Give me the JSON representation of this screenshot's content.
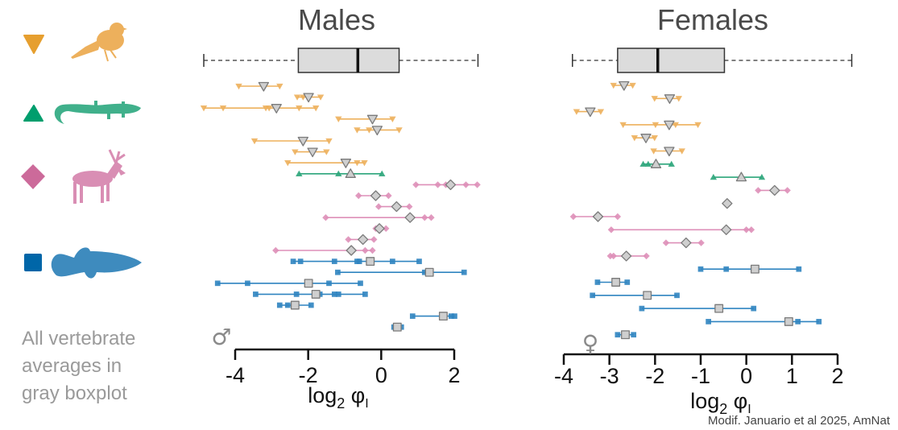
{
  "legend": {
    "groups": [
      {
        "id": "birds",
        "marker": "triangle-down",
        "marker_color": "#E69F2F",
        "line_color": "#EDB05C",
        "icon": "bird-silhouette-icon"
      },
      {
        "id": "reptiles",
        "marker": "triangle-up",
        "marker_color": "#009E6D",
        "line_color": "#2BA57A",
        "icon": "lizard-silhouette-icon"
      },
      {
        "id": "mammals",
        "marker": "diamond",
        "marker_color": "#CC6A9A",
        "line_color": "#DE8FB8",
        "icon": "deer-silhouette-icon"
      },
      {
        "id": "fish",
        "marker": "square",
        "marker_color": "#0066A8",
        "line_color": "#2F84C0",
        "icon": "fish-silhouette-icon"
      }
    ],
    "note_lines": [
      "All vertebrate",
      "averages in",
      "gray boxplot"
    ]
  },
  "credit": "Modif. Januario et al 2025, AmNat",
  "chart_data": [
    {
      "type": "dot-range",
      "title": "Males",
      "sex_symbol": "♂",
      "xlabel_main": "log",
      "xlabel_sub": "2",
      "xlabel_tail": " φ",
      "xlabel_tail_sub": "I",
      "xlim": [
        -4,
        2
      ],
      "xticks": [
        "-4",
        "-2",
        "0",
        "2"
      ],
      "xtick_values": [
        -4,
        -2,
        0,
        2
      ],
      "boxplot": {
        "min": -4.86,
        "q1": -2.27,
        "median": -0.64,
        "q3": 0.49,
        "max": 2.65
      },
      "rows": [
        {
          "group": "birds",
          "values": [
            -3.9,
            -2.78
          ],
          "mean": -3.22
        },
        {
          "group": "birds",
          "values": [
            -2.3,
            -2.14,
            -1.66
          ],
          "mean": -1.99
        },
        {
          "group": "birds",
          "values": [
            -4.86,
            -4.33,
            -3.16,
            -3.07,
            -2.25,
            -1.79
          ],
          "mean": -2.87
        },
        {
          "group": "birds",
          "values": [
            -1.17,
            0.31
          ],
          "mean": -0.24
        },
        {
          "group": "birds",
          "values": [
            -0.66,
            -0.33,
            0.49
          ],
          "mean": -0.11
        },
        {
          "group": "birds",
          "values": [
            -3.47,
            -1.43
          ],
          "mean": -2.14
        },
        {
          "group": "birds",
          "values": [
            -2.36,
            -1.5
          ],
          "mean": -1.88
        },
        {
          "group": "birds",
          "values": [
            -2.56,
            -0.66,
            -0.46
          ],
          "mean": -0.97
        },
        {
          "group": "reptiles",
          "values": [
            -2.25,
            -1.17,
            0.02
          ],
          "mean": -0.84
        },
        {
          "group": "mammals",
          "values": [
            0.95,
            1.55,
            1.77,
            2.32,
            2.63
          ],
          "mean": 1.9
        },
        {
          "group": "mammals",
          "values": [
            -0.62,
            0.2
          ],
          "mean": -0.15
        },
        {
          "group": "mammals",
          "values": [
            -0.07,
            0.77
          ],
          "mean": 0.42
        },
        {
          "group": "mammals",
          "values": [
            -1.52,
            1.19,
            1.37
          ],
          "mean": 0.79
        },
        {
          "group": "mammals",
          "values": [
            -0.15,
            0.13
          ],
          "mean": -0.05
        },
        {
          "group": "mammals",
          "values": [
            -0.9,
            -0.2
          ],
          "mean": -0.5
        },
        {
          "group": "mammals",
          "values": [
            -2.89,
            -0.44,
            -0.24
          ],
          "mean": -0.82
        },
        {
          "group": "fish",
          "values": [
            -2.41,
            -2.21,
            -1.28,
            -0.66,
            -0.6,
            0.31,
            1.04
          ],
          "mean": -0.3
        },
        {
          "group": "fish",
          "values": [
            -1.19,
            1.19,
            2.27
          ],
          "mean": 1.32
        },
        {
          "group": "fish",
          "values": [
            -4.48,
            -3.66,
            -1.43,
            -0.57
          ],
          "mean": -1.99
        },
        {
          "group": "fish",
          "values": [
            -3.44,
            -2.32,
            -1.68,
            -1.28,
            -1.17,
            -0.44
          ],
          "mean": -1.79
        },
        {
          "group": "fish",
          "values": [
            -2.78,
            -2.56,
            -1.92
          ],
          "mean": -2.36
        },
        {
          "group": "fish",
          "values": [
            0.86,
            1.92,
            2.01
          ],
          "mean": 1.7
        },
        {
          "group": "fish",
          "values": [
            0.35,
            0.55
          ],
          "mean": 0.44
        }
      ]
    },
    {
      "type": "dot-range",
      "title": "Females",
      "sex_symbol": "♀",
      "xlabel_main": "log",
      "xlabel_sub": "2",
      "xlabel_tail": " φ",
      "xlabel_tail_sub": "I",
      "xlim": [
        -4,
        2
      ],
      "xticks": [
        "-4",
        "-3",
        "-2",
        "-1",
        "0",
        "1",
        "2"
      ],
      "xtick_values": [
        -4,
        -3,
        -2,
        -1,
        0,
        1,
        2
      ],
      "boxplot": {
        "min": -3.81,
        "q1": -2.82,
        "median": -1.94,
        "q3": -0.48,
        "max": 2.31
      },
      "rows": [
        {
          "group": "birds",
          "values": [
            -2.91,
            -2.49
          ],
          "mean": -2.68
        },
        {
          "group": "birds",
          "values": [
            -2.01,
            -1.48
          ],
          "mean": -1.68
        },
        {
          "group": "birds",
          "values": [
            -3.72,
            -3.19
          ],
          "mean": -3.42
        },
        {
          "group": "birds",
          "values": [
            -2.7,
            -1.99,
            -1.55,
            -1.06
          ],
          "mean": -1.69
        },
        {
          "group": "birds",
          "values": [
            -2.45,
            -2.01
          ],
          "mean": -2.2
        },
        {
          "group": "birds",
          "values": [
            -2.03,
            -1.41
          ],
          "mean": -1.69
        },
        {
          "group": "reptiles",
          "values": [
            -2.26,
            -2.15,
            -1.64
          ],
          "mean": -1.98
        },
        {
          "group": "reptiles",
          "values": [
            -0.72,
            0.34
          ],
          "mean": -0.11
        },
        {
          "group": "mammals",
          "values": [
            0.26,
            0.9
          ],
          "mean": 0.62
        },
        {
          "group": "mammals",
          "values": [],
          "mean": -0.42
        },
        {
          "group": "mammals",
          "values": [
            -3.79,
            -2.82
          ],
          "mean": -3.25
        },
        {
          "group": "mammals",
          "values": [
            -2.96,
            0.0,
            0.11
          ],
          "mean": -0.44
        },
        {
          "group": "mammals",
          "values": [
            -1.76,
            -0.99
          ],
          "mean": -1.32
        },
        {
          "group": "mammals",
          "values": [
            -2.98,
            -2.91,
            -2.19
          ],
          "mean": -2.63
        },
        {
          "group": "fish",
          "values": [
            -1.0,
            -0.44,
            1.15
          ],
          "mean": 0.19
        },
        {
          "group": "fish",
          "values": [
            -3.26,
            -2.61
          ],
          "mean": -2.86
        },
        {
          "group": "fish",
          "values": [
            -3.37,
            -1.52
          ],
          "mean": -2.17
        },
        {
          "group": "fish",
          "values": [
            -2.29,
            0.16
          ],
          "mean": -0.6
        },
        {
          "group": "fish",
          "values": [
            -0.83,
            1.13,
            1.59
          ],
          "mean": 0.93
        },
        {
          "group": "fish",
          "values": [
            -2.82,
            -2.47
          ],
          "mean": -2.65
        }
      ]
    }
  ]
}
